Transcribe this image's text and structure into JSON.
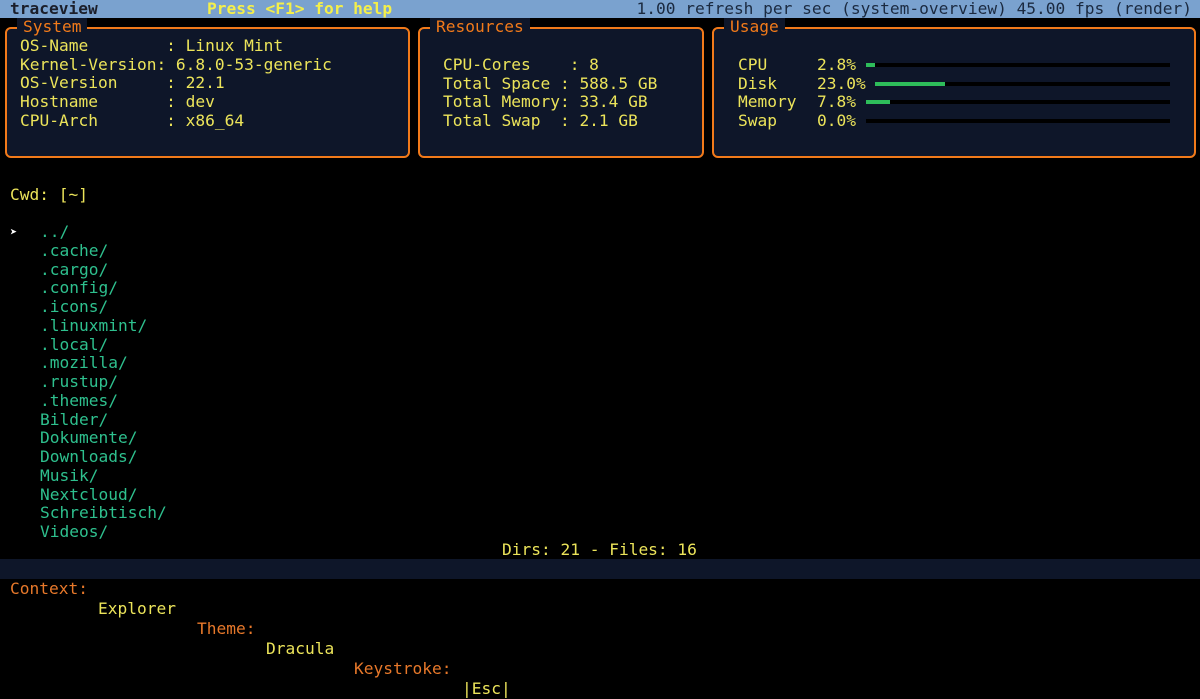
{
  "topbar": {
    "app": "traceview",
    "help": "Press <F1> for help",
    "info": "1.00 refresh per sec (system-overview) 45.00 fps (render)"
  },
  "system": {
    "title": "System",
    "rows": [
      "OS-Name        : Linux Mint",
      "Kernel-Version: 6.8.0-53-generic",
      "OS-Version     : 22.1",
      "Hostname       : dev",
      "CPU-Arch       : x86_64"
    ]
  },
  "resources": {
    "title": "Resources",
    "rows": [
      "CPU-Cores    : 8",
      "Total Space : 588.5 GB",
      "Total Memory: 33.4 GB",
      "Total Swap  : 2.1 GB"
    ]
  },
  "usage": {
    "title": "Usage",
    "items": [
      {
        "label": "CPU",
        "value": "2.8%",
        "percent": 2.8
      },
      {
        "label": "Disk",
        "value": "23.0%",
        "percent": 23.0
      },
      {
        "label": "Memory",
        "value": "7.8%",
        "percent": 7.8
      },
      {
        "label": "Swap",
        "value": "0.0%",
        "percent": 0.0
      }
    ],
    "bar_color": "#2ebd5a"
  },
  "explorer": {
    "cwd": "Cwd: [~]",
    "cursor": "➤",
    "items": [
      "../",
      ".cache/",
      ".cargo/",
      ".config/",
      ".icons/",
      ".linuxmint/",
      ".local/",
      ".mozilla/",
      ".rustup/",
      ".themes/",
      "Bilder/",
      "Dokumente/",
      "Downloads/",
      "Musik/",
      "Nextcloud/",
      "Schreibtisch/",
      "Videos/"
    ],
    "summary": "Dirs: 21 - Files: 16"
  },
  "status": {
    "context_label": "Context:",
    "context": "Explorer",
    "theme_label": "Theme:",
    "theme": "Dracula",
    "keystroke_label": "Keystroke:",
    "keystroke": "|Esc|"
  }
}
